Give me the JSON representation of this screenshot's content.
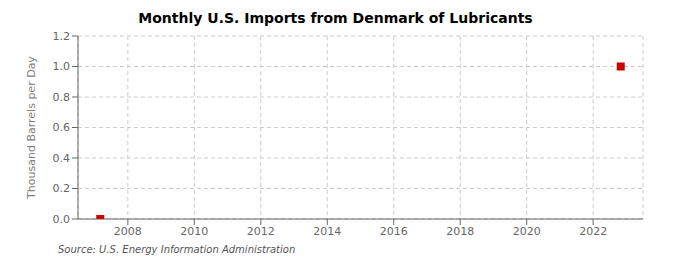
{
  "chart_data": {
    "type": "scatter",
    "title": "Monthly U.S. Imports from Denmark of Lubricants",
    "ylabel": "Thousand Barrels per Day",
    "annotations": [
      "Source: U.S. Energy Information Administration"
    ],
    "x": [
      2007.17,
      2022.83
    ],
    "values": [
      0.0,
      1.0
    ],
    "color": "#cc0000",
    "marker": "square",
    "xlim": [
      2006.5,
      2023.5
    ],
    "ylim": [
      0.0,
      1.2
    ],
    "xticks": [
      2008,
      2010,
      2012,
      2014,
      2016,
      2018,
      2020,
      2022
    ],
    "yticks": [
      {
        "value": 0,
        "label": "0.0"
      },
      0.2,
      0.4,
      0.6,
      0.8,
      {
        "value": 1,
        "label": "1.0"
      },
      1.2
    ],
    "grid": true
  }
}
